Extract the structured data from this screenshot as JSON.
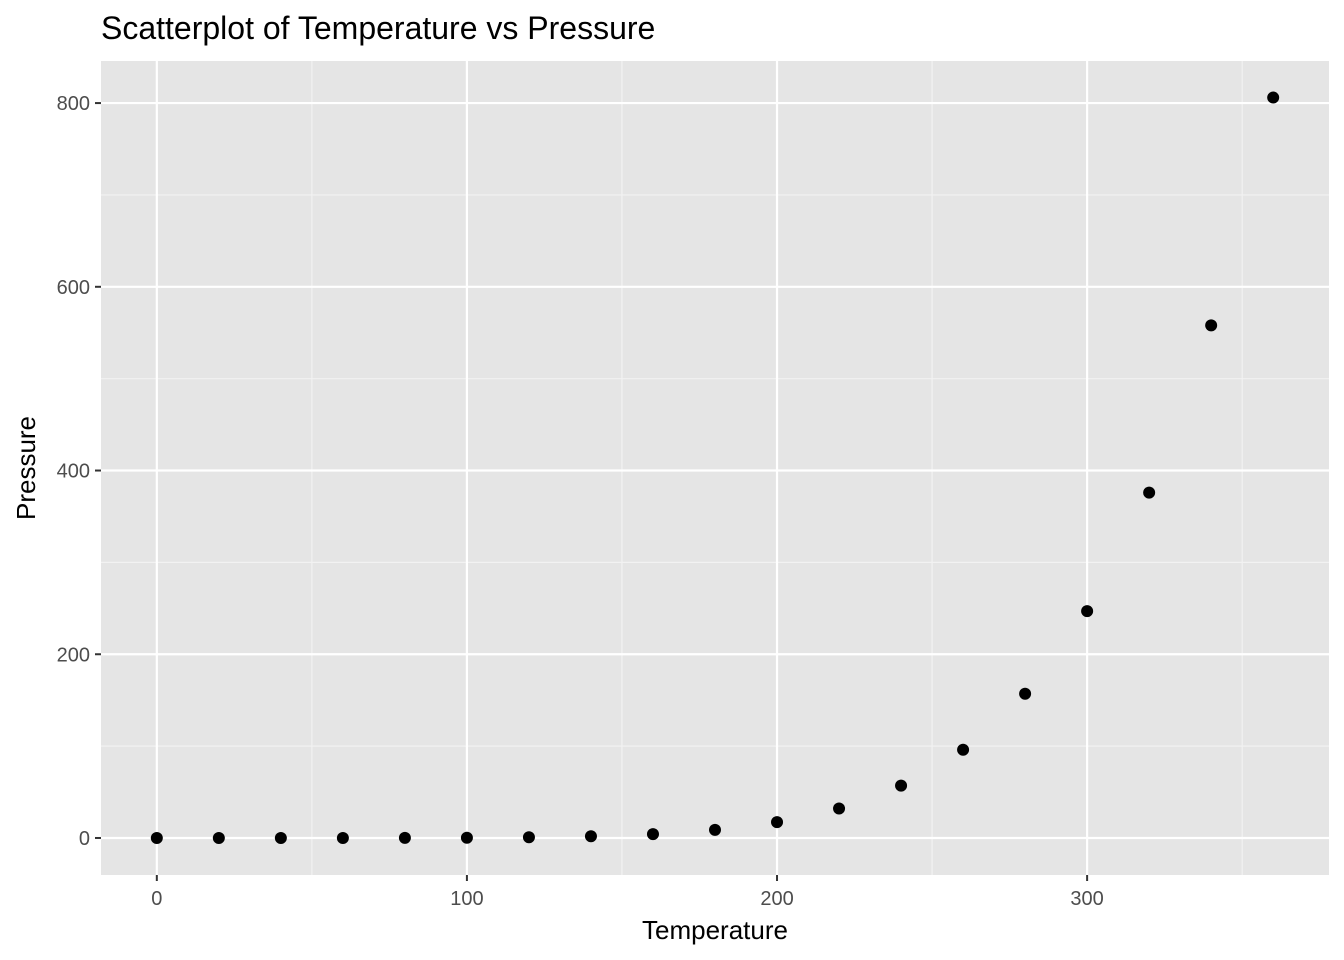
{
  "colors": {
    "panel_background": "#e5e5e5",
    "grid_major": "#ffffff",
    "grid_minor": "#f2f2f2",
    "point": "#000000",
    "tick_text": "#4d4d4d",
    "tick_mark": "#333333"
  },
  "chart_data": {
    "type": "scatter",
    "title": "Scatterplot of Temperature vs Pressure",
    "xlabel": "Temperature",
    "ylabel": "Pressure",
    "xlim": [
      -18,
      378
    ],
    "ylim": [
      -40.3,
      845.8
    ],
    "x_ticks": [
      0,
      100,
      200,
      300
    ],
    "x_tick_labels": [
      "0",
      "100",
      "200",
      "300"
    ],
    "y_ticks": [
      0,
      200,
      400,
      600,
      800
    ],
    "y_tick_labels": [
      "0",
      "200",
      "400",
      "600",
      "800"
    ],
    "x_minor_ticks": [
      50,
      150,
      250,
      350
    ],
    "y_minor_ticks": [
      100,
      300,
      500,
      700
    ],
    "grid": true,
    "legend": "none",
    "x": [
      0,
      20,
      40,
      60,
      80,
      100,
      120,
      140,
      160,
      180,
      200,
      220,
      240,
      260,
      280,
      300,
      320,
      340,
      360
    ],
    "y": [
      0.0002,
      0.0012,
      0.006,
      0.03,
      0.09,
      0.27,
      0.75,
      1.85,
      4.2,
      8.8,
      17.3,
      32.1,
      57.0,
      96.0,
      157.0,
      247.0,
      376.0,
      558.0,
      806.0
    ]
  }
}
